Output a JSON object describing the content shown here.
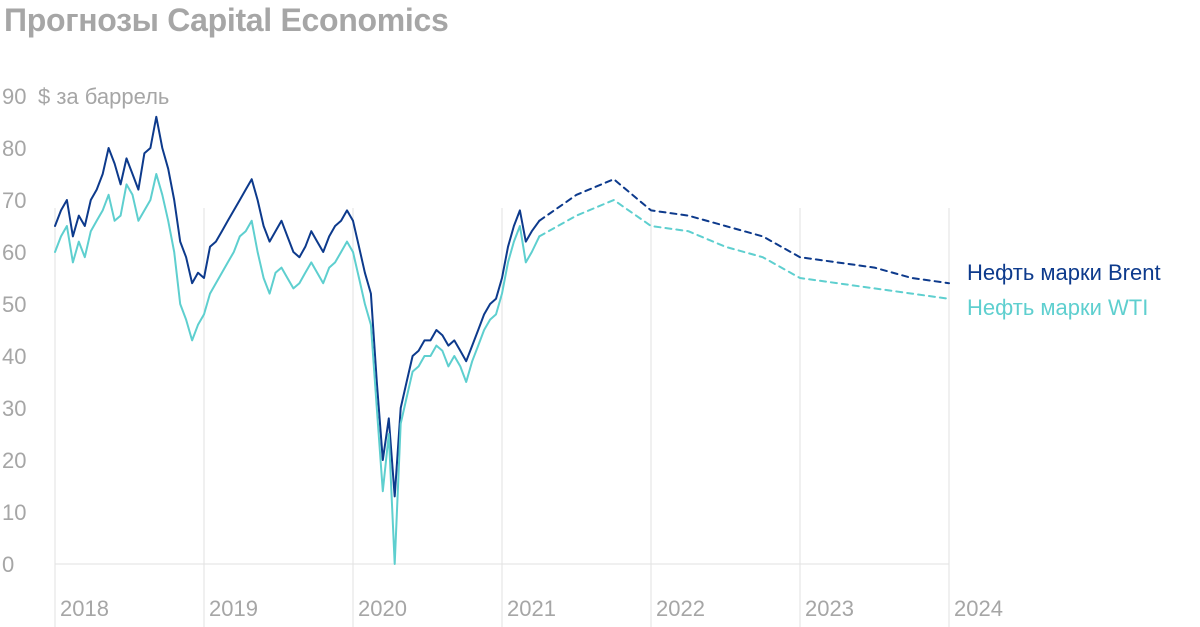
{
  "header": {
    "title": "Прогнозы Capital Economics"
  },
  "chart_data": {
    "type": "line",
    "title": "Прогнозы Capital Economics",
    "ylabel": "$ за баррель",
    "ylim": [
      0,
      90
    ],
    "yticks": [
      0,
      10,
      20,
      30,
      40,
      50,
      60,
      70,
      80,
      90
    ],
    "xlim": [
      2018,
      2024
    ],
    "xticks": [
      2018,
      2019,
      2020,
      2021,
      2022,
      2023,
      2024
    ],
    "grid": "vertical",
    "legend": "right",
    "series": [
      {
        "name": "Нефть марки Brent",
        "color": "#0d3a8c",
        "style": "solid",
        "points": [
          [
            2018.0,
            65
          ],
          [
            2018.04,
            68
          ],
          [
            2018.08,
            70
          ],
          [
            2018.12,
            63
          ],
          [
            2018.16,
            67
          ],
          [
            2018.2,
            65
          ],
          [
            2018.24,
            70
          ],
          [
            2018.28,
            72
          ],
          [
            2018.32,
            75
          ],
          [
            2018.36,
            80
          ],
          [
            2018.4,
            77
          ],
          [
            2018.44,
            73
          ],
          [
            2018.48,
            78
          ],
          [
            2018.52,
            75
          ],
          [
            2018.56,
            72
          ],
          [
            2018.6,
            79
          ],
          [
            2018.64,
            80
          ],
          [
            2018.68,
            86
          ],
          [
            2018.72,
            80
          ],
          [
            2018.76,
            76
          ],
          [
            2018.8,
            70
          ],
          [
            2018.84,
            62
          ],
          [
            2018.88,
            59
          ],
          [
            2018.92,
            54
          ],
          [
            2018.96,
            56
          ],
          [
            2019.0,
            55
          ],
          [
            2019.04,
            61
          ],
          [
            2019.08,
            62
          ],
          [
            2019.12,
            64
          ],
          [
            2019.16,
            66
          ],
          [
            2019.2,
            68
          ],
          [
            2019.24,
            70
          ],
          [
            2019.28,
            72
          ],
          [
            2019.32,
            74
          ],
          [
            2019.36,
            70
          ],
          [
            2019.4,
            65
          ],
          [
            2019.44,
            62
          ],
          [
            2019.48,
            64
          ],
          [
            2019.52,
            66
          ],
          [
            2019.56,
            63
          ],
          [
            2019.6,
            60
          ],
          [
            2019.64,
            59
          ],
          [
            2019.68,
            61
          ],
          [
            2019.72,
            64
          ],
          [
            2019.76,
            62
          ],
          [
            2019.8,
            60
          ],
          [
            2019.84,
            63
          ],
          [
            2019.88,
            65
          ],
          [
            2019.92,
            66
          ],
          [
            2019.96,
            68
          ],
          [
            2020.0,
            66
          ],
          [
            2020.04,
            61
          ],
          [
            2020.08,
            56
          ],
          [
            2020.12,
            52
          ],
          [
            2020.16,
            35
          ],
          [
            2020.2,
            20
          ],
          [
            2020.24,
            28
          ],
          [
            2020.28,
            13
          ],
          [
            2020.32,
            30
          ],
          [
            2020.36,
            35
          ],
          [
            2020.4,
            40
          ],
          [
            2020.44,
            41
          ],
          [
            2020.48,
            43
          ],
          [
            2020.52,
            43
          ],
          [
            2020.56,
            45
          ],
          [
            2020.6,
            44
          ],
          [
            2020.64,
            42
          ],
          [
            2020.68,
            43
          ],
          [
            2020.72,
            41
          ],
          [
            2020.76,
            39
          ],
          [
            2020.8,
            42
          ],
          [
            2020.84,
            45
          ],
          [
            2020.88,
            48
          ],
          [
            2020.92,
            50
          ],
          [
            2020.96,
            51
          ],
          [
            2021.0,
            55
          ],
          [
            2021.04,
            61
          ],
          [
            2021.08,
            65
          ],
          [
            2021.12,
            68
          ],
          [
            2021.16,
            62
          ],
          [
            2021.2,
            64
          ],
          [
            2021.25,
            66
          ]
        ]
      },
      {
        "name": "Нефть марки WTI",
        "color": "#5ecfcf",
        "style": "solid",
        "points": [
          [
            2018.0,
            60
          ],
          [
            2018.04,
            63
          ],
          [
            2018.08,
            65
          ],
          [
            2018.12,
            58
          ],
          [
            2018.16,
            62
          ],
          [
            2018.2,
            59
          ],
          [
            2018.24,
            64
          ],
          [
            2018.28,
            66
          ],
          [
            2018.32,
            68
          ],
          [
            2018.36,
            71
          ],
          [
            2018.4,
            66
          ],
          [
            2018.44,
            67
          ],
          [
            2018.48,
            73
          ],
          [
            2018.52,
            71
          ],
          [
            2018.56,
            66
          ],
          [
            2018.6,
            68
          ],
          [
            2018.64,
            70
          ],
          [
            2018.68,
            75
          ],
          [
            2018.72,
            71
          ],
          [
            2018.76,
            66
          ],
          [
            2018.8,
            60
          ],
          [
            2018.84,
            50
          ],
          [
            2018.88,
            47
          ],
          [
            2018.92,
            43
          ],
          [
            2018.96,
            46
          ],
          [
            2019.0,
            48
          ],
          [
            2019.04,
            52
          ],
          [
            2019.08,
            54
          ],
          [
            2019.12,
            56
          ],
          [
            2019.16,
            58
          ],
          [
            2019.2,
            60
          ],
          [
            2019.24,
            63
          ],
          [
            2019.28,
            64
          ],
          [
            2019.32,
            66
          ],
          [
            2019.36,
            60
          ],
          [
            2019.4,
            55
          ],
          [
            2019.44,
            52
          ],
          [
            2019.48,
            56
          ],
          [
            2019.52,
            57
          ],
          [
            2019.56,
            55
          ],
          [
            2019.6,
            53
          ],
          [
            2019.64,
            54
          ],
          [
            2019.68,
            56
          ],
          [
            2019.72,
            58
          ],
          [
            2019.76,
            56
          ],
          [
            2019.8,
            54
          ],
          [
            2019.84,
            57
          ],
          [
            2019.88,
            58
          ],
          [
            2019.92,
            60
          ],
          [
            2019.96,
            62
          ],
          [
            2020.0,
            60
          ],
          [
            2020.04,
            55
          ],
          [
            2020.08,
            50
          ],
          [
            2020.12,
            46
          ],
          [
            2020.16,
            30
          ],
          [
            2020.2,
            14
          ],
          [
            2020.24,
            25
          ],
          [
            2020.28,
            0
          ],
          [
            2020.32,
            27
          ],
          [
            2020.36,
            32
          ],
          [
            2020.4,
            37
          ],
          [
            2020.44,
            38
          ],
          [
            2020.48,
            40
          ],
          [
            2020.52,
            40
          ],
          [
            2020.56,
            42
          ],
          [
            2020.6,
            41
          ],
          [
            2020.64,
            38
          ],
          [
            2020.68,
            40
          ],
          [
            2020.72,
            38
          ],
          [
            2020.76,
            35
          ],
          [
            2020.8,
            39
          ],
          [
            2020.84,
            42
          ],
          [
            2020.88,
            45
          ],
          [
            2020.92,
            47
          ],
          [
            2020.96,
            48
          ],
          [
            2021.0,
            52
          ],
          [
            2021.04,
            58
          ],
          [
            2021.08,
            62
          ],
          [
            2021.12,
            65
          ],
          [
            2021.16,
            58
          ],
          [
            2021.2,
            60
          ],
          [
            2021.25,
            63
          ]
        ]
      },
      {
        "name": "Нефть марки Brent",
        "role": "forecast",
        "color": "#0d3a8c",
        "style": "dashed",
        "points": [
          [
            2021.25,
            66
          ],
          [
            2021.5,
            71
          ],
          [
            2021.75,
            74
          ],
          [
            2022.0,
            68
          ],
          [
            2022.25,
            67
          ],
          [
            2022.5,
            65
          ],
          [
            2022.75,
            63
          ],
          [
            2023.0,
            59
          ],
          [
            2023.25,
            58
          ],
          [
            2023.5,
            57
          ],
          [
            2023.75,
            55
          ],
          [
            2024.0,
            54
          ]
        ]
      },
      {
        "name": "Нефть марки WTI",
        "role": "forecast",
        "color": "#5ecfcf",
        "style": "dashed",
        "points": [
          [
            2021.25,
            63
          ],
          [
            2021.5,
            67
          ],
          [
            2021.75,
            70
          ],
          [
            2022.0,
            65
          ],
          [
            2022.25,
            64
          ],
          [
            2022.5,
            61
          ],
          [
            2022.75,
            59
          ],
          [
            2023.0,
            55
          ],
          [
            2023.25,
            54
          ],
          [
            2023.5,
            53
          ],
          [
            2023.75,
            52
          ],
          [
            2024.0,
            51
          ]
        ]
      }
    ],
    "legend_entries": [
      {
        "label": "Нефть марки Brent",
        "color": "#0d3a8c"
      },
      {
        "label": "Нефть марки WTI",
        "color": "#5ecfcf"
      }
    ]
  }
}
